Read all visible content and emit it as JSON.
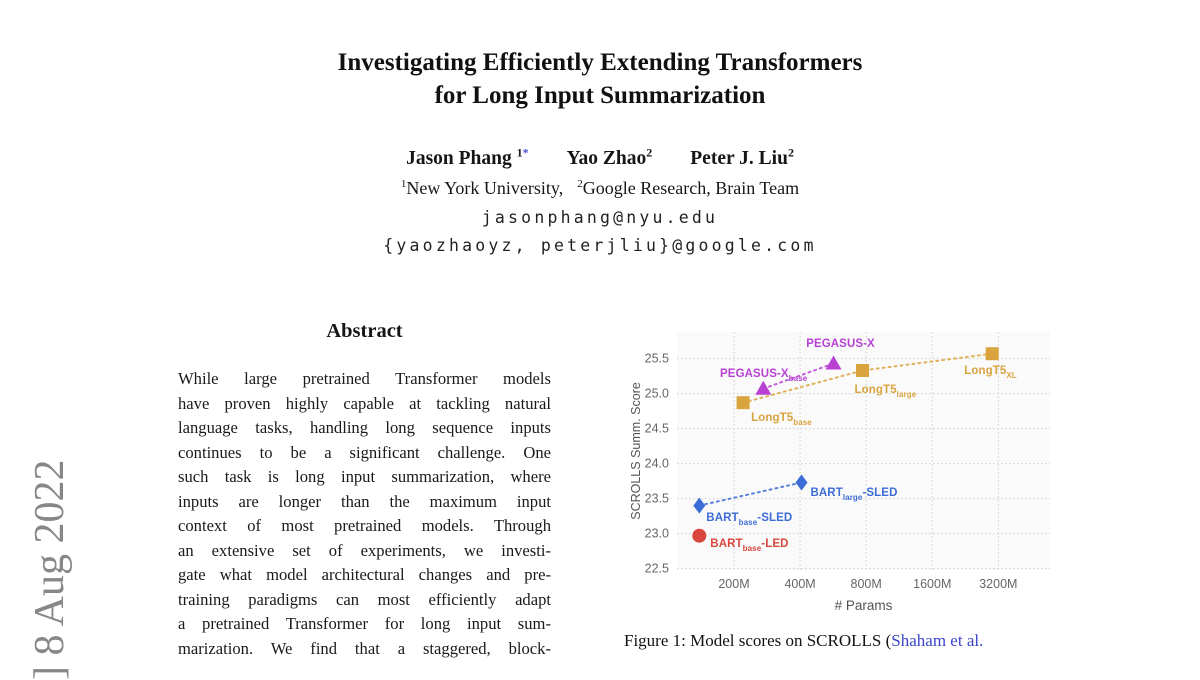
{
  "page": {
    "watermark": "] 8 Aug 2022",
    "title_line1": "Investigating Efficiently Extending Transformers",
    "title_line2": "for Long Input Summarization",
    "authors": [
      {
        "name": "Jason Phang ",
        "sup": "1",
        "mark": "*"
      },
      {
        "name": "Yao Zhao",
        "sup": "2",
        "mark": ""
      },
      {
        "name": "Peter J. Liu",
        "sup": "2",
        "mark": ""
      }
    ],
    "affiliations": [
      {
        "sup": "1",
        "text": "New York University,"
      },
      {
        "sup": "2",
        "text": "Google Research, Brain Team"
      }
    ],
    "emails": [
      "jasonphang@nyu.edu",
      "{yaozhaoyz, peterjliu}@google.com"
    ],
    "abstract": {
      "heading": "Abstract",
      "lines": [
        "While large pretrained Transformer models",
        "have proven highly capable at tackling natural",
        "language tasks, handling long sequence inputs",
        "continues to be a significant challenge. One",
        "such task is long input summarization, where",
        "inputs are longer than the maximum input",
        "context of most pretrained models. Through",
        "an extensive set of experiments, we investi-",
        "gate what model architectural changes and pre-",
        "training paradigms can most efficiently adapt",
        "a pretrained Transformer for long input sum-",
        "marization. We find that a staggered, block-"
      ]
    },
    "caption": {
      "prefix": "Figure 1: Model scores on SCROLLS (",
      "citation": "Shaham et al."
    }
  },
  "chart_data": {
    "type": "scatter",
    "xlabel": "# Params",
    "ylabel": "SCROLLS Summ. Score",
    "x_scale": "log2",
    "x_range_millions": [
      110,
      5500
    ],
    "y_range": [
      22.48,
      25.88
    ],
    "grid": "dotted",
    "grid_color": "#cfcfcf",
    "plot_bg": "#fafafa",
    "tick_color": "#666666",
    "axis_label_color": "#555555",
    "x_ticks": [
      {
        "label": "200M",
        "value": 200
      },
      {
        "label": "400M",
        "value": 400
      },
      {
        "label": "800M",
        "value": 800
      },
      {
        "label": "1600M",
        "value": 1600
      },
      {
        "label": "3200M",
        "value": 3200
      }
    ],
    "y_ticks": [
      {
        "label": "22.5",
        "value": 22.5
      },
      {
        "label": "23.0",
        "value": 23.0
      },
      {
        "label": "23.5",
        "value": 23.5
      },
      {
        "label": "24.0",
        "value": 24.0
      },
      {
        "label": "24.5",
        "value": 24.5
      },
      {
        "label": "25.0",
        "value": 25.0
      },
      {
        "label": "25.5",
        "value": 25.5
      }
    ],
    "series": [
      {
        "name": "LongT5",
        "color": "#d9a43e",
        "marker": "square",
        "line": "dotted",
        "points": [
          {
            "params_millions": 220,
            "score": 24.87,
            "label": {
              "main": "LongT5",
              "sub": "base",
              "tail": ""
            },
            "anchor": "left",
            "dx": 8,
            "dy": 9
          },
          {
            "params_millions": 770,
            "score": 25.33,
            "label": {
              "main": "LongT5",
              "sub": "large",
              "tail": ""
            },
            "anchor": "left",
            "dx": -8,
            "dy": 13
          },
          {
            "params_millions": 3000,
            "score": 25.57,
            "label": {
              "main": "LongT5",
              "sub": "XL",
              "tail": ""
            },
            "anchor": "left",
            "dx": -28,
            "dy": 11
          }
        ]
      },
      {
        "name": "PEGASUS-X",
        "color": "#b841d4",
        "marker": "triangle",
        "line": "dotted",
        "points": [
          {
            "params_millions": 272,
            "score": 25.07,
            "label": {
              "main": "PEGASUS-X",
              "sub": "base",
              "tail": ""
            },
            "anchor": "right",
            "dx": 44,
            "dy": -21
          },
          {
            "params_millions": 568,
            "score": 25.43,
            "label": {
              "main": "PEGASUS-X",
              "sub": "",
              "tail": ""
            },
            "anchor": "center",
            "dx": 7,
            "dy": -26
          }
        ]
      },
      {
        "name": "BART-SLED",
        "color": "#3c6cd6",
        "marker": "diamond",
        "line": "dotted",
        "points": [
          {
            "params_millions": 139,
            "score": 23.4,
            "label": {
              "main": "BART",
              "sub": "base",
              "tail": "-SLED"
            },
            "anchor": "left",
            "dx": 7,
            "dy": 6
          },
          {
            "params_millions": 406,
            "score": 23.73,
            "label": {
              "main": "BART",
              "sub": "large",
              "tail": "-SLED"
            },
            "anchor": "left",
            "dx": 9,
            "dy": 4
          }
        ]
      },
      {
        "name": "BART-LED",
        "color": "#d8463d",
        "marker": "circle",
        "line": "none",
        "points": [
          {
            "params_millions": 139,
            "score": 22.97,
            "label": {
              "main": "BART",
              "sub": "base",
              "tail": "-LED"
            },
            "anchor": "left",
            "dx": 11,
            "dy": 2
          }
        ]
      }
    ]
  }
}
